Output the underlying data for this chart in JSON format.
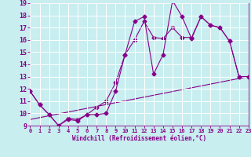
{
  "xlabel": "Windchill (Refroidissement éolien,°C)",
  "xlim": [
    0,
    23
  ],
  "ylim": [
    9,
    19
  ],
  "xticks": [
    0,
    1,
    2,
    3,
    4,
    5,
    6,
    7,
    8,
    9,
    10,
    11,
    12,
    13,
    14,
    15,
    16,
    17,
    18,
    19,
    20,
    21,
    22,
    23
  ],
  "yticks": [
    9,
    10,
    11,
    12,
    13,
    14,
    15,
    16,
    17,
    18,
    19
  ],
  "bg_color": "#c8eef0",
  "line_color": "#880088",
  "grid_color": "#ffffff",
  "series1_x": [
    0,
    1,
    2,
    3,
    4,
    5,
    6,
    7,
    8,
    9,
    10,
    11,
    12,
    13,
    14,
    15,
    16,
    17,
    18,
    19,
    20,
    21,
    22,
    23
  ],
  "series1_y": [
    11.8,
    10.7,
    9.9,
    9.0,
    9.5,
    9.4,
    9.9,
    9.9,
    10.0,
    11.8,
    14.8,
    17.5,
    17.9,
    13.2,
    14.8,
    19.2,
    17.9,
    16.1,
    17.9,
    17.2,
    17.0,
    15.9,
    13.0,
    13.0
  ],
  "series2_x": [
    0,
    1,
    2,
    3,
    4,
    5,
    6,
    7,
    8,
    9,
    10,
    11,
    12,
    13,
    14,
    15,
    16,
    17,
    18,
    19,
    20,
    21,
    22,
    23
  ],
  "series2_y": [
    11.8,
    10.7,
    9.9,
    9.0,
    9.6,
    9.5,
    9.9,
    10.5,
    11.0,
    12.5,
    14.8,
    16.0,
    17.5,
    16.2,
    16.1,
    17.0,
    16.2,
    16.2,
    17.9,
    17.2,
    17.0,
    15.9,
    13.0,
    13.0
  ],
  "series3_x": [
    0,
    23
  ],
  "series3_y": [
    9.5,
    13.0
  ],
  "markersize": 2.5,
  "linewidth": 0.8
}
